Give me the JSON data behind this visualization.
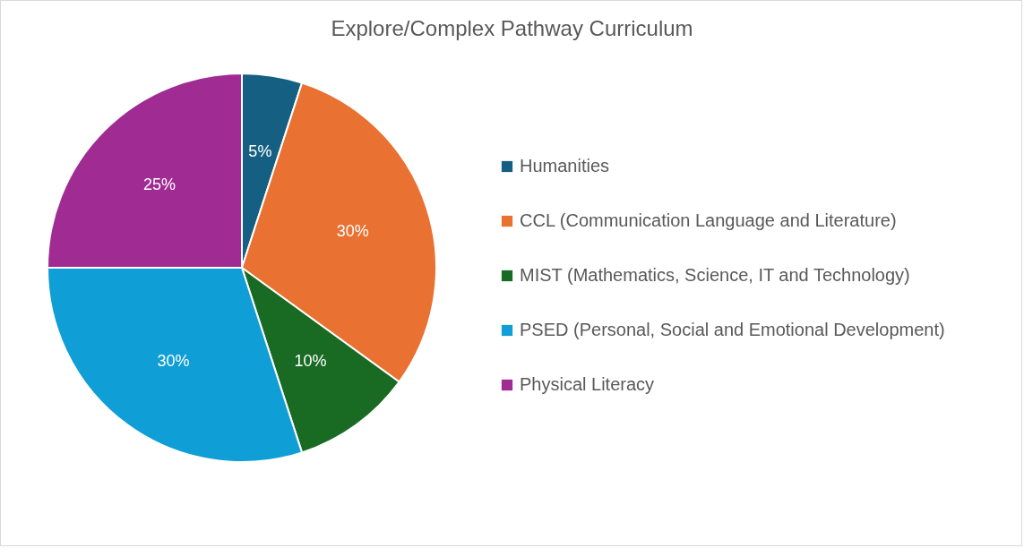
{
  "chart_data": {
    "type": "pie",
    "title": "Explore/Complex Pathway  Curriculum",
    "categories": [
      "Humanities",
      "CCL (Communication Language and Literature)",
      "MIST (Mathematics, Science, IT and Technology)",
      "PSED (Personal, Social and Emotional Development)",
      "Physical Literacy"
    ],
    "values": [
      5,
      30,
      10,
      30,
      25
    ],
    "colors": [
      "#156082",
      "#e97132",
      "#196b24",
      "#0f9ed5",
      "#a02b93"
    ],
    "value_labels": [
      "5%",
      "30%",
      "10%",
      "30%",
      "25%"
    ],
    "legend": "right"
  }
}
